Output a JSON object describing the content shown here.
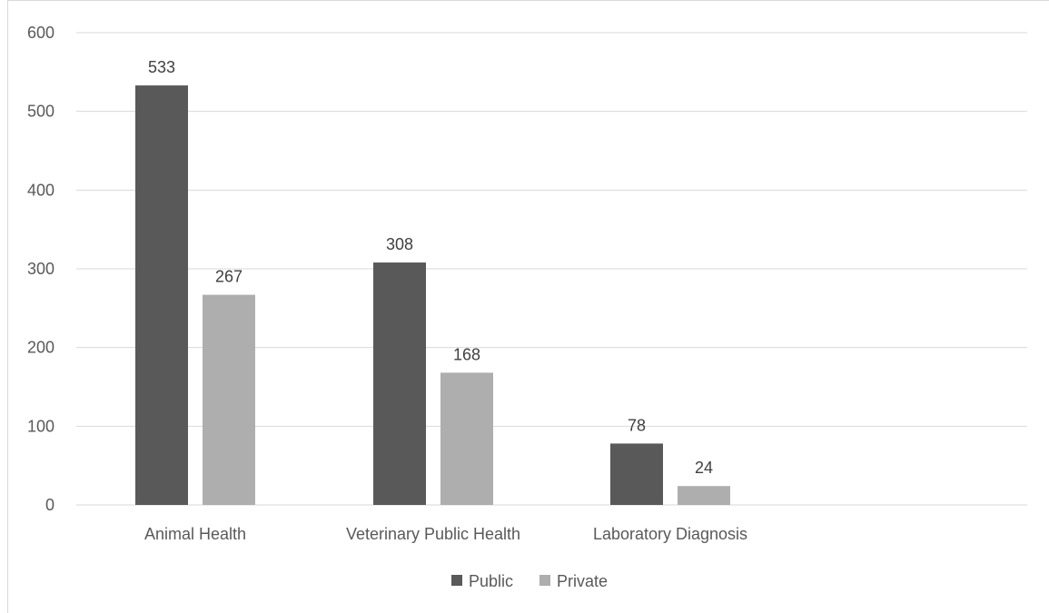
{
  "chart_data": {
    "type": "bar",
    "categories": [
      "Animal Health",
      "Veterinary Public Health",
      "Laboratory Diagnosis"
    ],
    "series": [
      {
        "name": "Public",
        "values": [
          533,
          308,
          78
        ],
        "color": "#595959"
      },
      {
        "name": "Private",
        "values": [
          267,
          168,
          24
        ],
        "color": "#aeaeae"
      }
    ],
    "title": "",
    "xlabel": "",
    "ylabel": "",
    "ylim": [
      0,
      600
    ],
    "yticks": [
      0,
      100,
      200,
      300,
      400,
      500,
      600
    ],
    "grid": true,
    "legend_position": "bottom",
    "data_labels": true
  }
}
